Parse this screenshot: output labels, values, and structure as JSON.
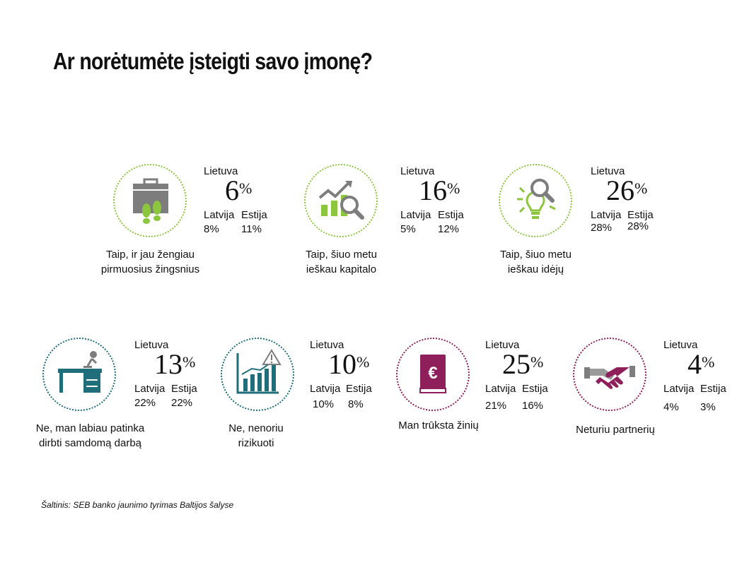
{
  "title": "Ar norėtumėte įsteigti savo įmonę?",
  "source": "Šaltinis: SEB banko jaunimo tyrimas Baltijos šalyse",
  "colors": {
    "green": "#8cc63f",
    "teal": "#1f6e7a",
    "purple": "#8e1f5a",
    "gray": "#7d7d7d"
  },
  "chart_data": {
    "type": "table",
    "unit": "%",
    "labels": {
      "lt": "Lietuva",
      "lv": "Latvija",
      "ee": "Estija"
    },
    "items": [
      {
        "caption": [
          "Taip, ir jau žengiau",
          "pirmuosius žingsnius"
        ],
        "lt": 6,
        "lv": "8%",
        "ee": "11%",
        "icon": "briefcase-footsteps-icon",
        "color": "#8cc63f"
      },
      {
        "caption": [
          "Taip, šiuo metu",
          "ieškau kapitalo"
        ],
        "lt": 16,
        "lv": "5%",
        "ee": "12%",
        "icon": "growth-chart-magnifier-icon",
        "color": "#8cc63f"
      },
      {
        "caption": [
          "Taip, šiuo metu",
          "ieškau idėjų"
        ],
        "lt": 26,
        "lv": "28%",
        "ee": "28%",
        "icon": "lightbulb-magnifier-icon",
        "color": "#8cc63f"
      },
      {
        "caption": [
          "Ne, man labiau patinka",
          "dirbti samdomą darbą"
        ],
        "lt": 13,
        "lv": "22%",
        "ee": "22%",
        "icon": "office-desk-icon",
        "color": "#1f6e7a"
      },
      {
        "caption": [
          "Ne, nenoriu",
          "rizikuoti"
        ],
        "lt": 10,
        "lv": "10%",
        "ee": "8%",
        "icon": "risk-chart-icon",
        "color": "#1f6e7a"
      },
      {
        "caption": [
          "Man trūksta žinių"
        ],
        "lt": 25,
        "lv": "21%",
        "ee": "16%",
        "icon": "euro-book-icon",
        "color": "#8e1f5a"
      },
      {
        "caption": [
          "Neturiu partnerių"
        ],
        "lt": 4,
        "lv": "4%",
        "ee": "3%",
        "icon": "handshake-icon",
        "color": "#8e1f5a"
      }
    ]
  }
}
